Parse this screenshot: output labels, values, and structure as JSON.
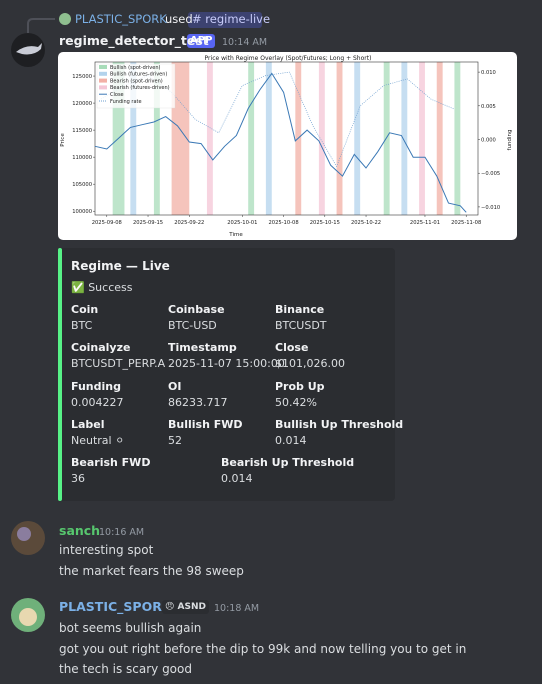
{
  "header": {
    "user": "PLASTIC_SPORK",
    "used": "used",
    "command": "# regime-live"
  },
  "bot": {
    "name": "regime_detector_test",
    "tag": "APP",
    "time": "10:14 AM"
  },
  "chart": {
    "type": "line",
    "title": "Price with Regime Overlay (Spot/Futures; Long + Short)",
    "xlabel": "Time",
    "ylabel": "Price",
    "y2label": "funding",
    "xlim": [
      "2025-09-06",
      "2025-11-10"
    ],
    "xticks": [
      "2025-09-08",
      "2025-09-15",
      "2025-09-22",
      "2025-10-01",
      "2025-10-08",
      "2025-10-15",
      "2025-10-22",
      "2025-11-01",
      "2025-11-08"
    ],
    "ylim": [
      99300,
      127600
    ],
    "yticks": [
      100000,
      105000,
      110000,
      115000,
      120000,
      125000
    ],
    "y2lim": [
      -0.0112,
      0.0115
    ],
    "y2ticks": [
      {
        "value": -0.01,
        "label": "−0.010"
      },
      {
        "value": -0.005,
        "label": "−0.005"
      },
      {
        "value": 0,
        "label": "0.000"
      },
      {
        "value": 0.005,
        "label": "0.005"
      },
      {
        "value": 0.01,
        "label": "0.010"
      }
    ],
    "regimes": [
      {
        "name": "Bullish (spot-driven)",
        "color": "#a8dcb9",
        "spans": [
          [
            "2025-09-09",
            "2025-09-11"
          ],
          [
            "2025-09-16",
            "2025-09-17"
          ],
          [
            "2025-10-02",
            "2025-10-03"
          ],
          [
            "2025-10-25",
            "2025-10-26"
          ],
          [
            "2025-11-06",
            "2025-11-07"
          ]
        ]
      },
      {
        "name": "Bullish (futures-driven)",
        "color": "#b3d3ec",
        "spans": [
          [
            "2025-09-12",
            "2025-09-13"
          ],
          [
            "2025-10-05",
            "2025-10-06"
          ],
          [
            "2025-10-20",
            "2025-10-21"
          ],
          [
            "2025-10-28",
            "2025-10-29"
          ]
        ]
      },
      {
        "name": "Bearish (spot-driven)",
        "color": "#f2b0a6",
        "spans": [
          [
            "2025-09-19",
            "2025-09-22"
          ],
          [
            "2025-10-10",
            "2025-10-11"
          ],
          [
            "2025-10-17",
            "2025-10-18"
          ],
          [
            "2025-11-03",
            "2025-11-04"
          ]
        ]
      },
      {
        "name": "Bearish (futures-driven)",
        "color": "#f4c6d6",
        "spans": [
          [
            "2025-09-25",
            "2025-09-26"
          ],
          [
            "2025-10-14",
            "2025-10-15"
          ],
          [
            "2025-10-31",
            "2025-11-01"
          ]
        ]
      }
    ],
    "series": [
      {
        "name": "Close",
        "color": "#3a78b5",
        "x": [
          "2025-09-06",
          "2025-09-08",
          "2025-09-10",
          "2025-09-12",
          "2025-09-14",
          "2025-09-16",
          "2025-09-18",
          "2025-09-20",
          "2025-09-22",
          "2025-09-24",
          "2025-09-26",
          "2025-09-28",
          "2025-09-30",
          "2025-10-02",
          "2025-10-04",
          "2025-10-06",
          "2025-10-08",
          "2025-10-10",
          "2025-10-12",
          "2025-10-14",
          "2025-10-16",
          "2025-10-18",
          "2025-10-20",
          "2025-10-22",
          "2025-10-24",
          "2025-10-26",
          "2025-10-28",
          "2025-10-30",
          "2025-11-01",
          "2025-11-03",
          "2025-11-05",
          "2025-11-07",
          "2025-11-08"
        ],
        "values": [
          112000,
          111500,
          113500,
          115500,
          116000,
          116500,
          117500,
          115800,
          112800,
          112500,
          109500,
          112000,
          114000,
          119000,
          122500,
          125500,
          122000,
          113000,
          115000,
          113000,
          108500,
          106500,
          110500,
          108000,
          111000,
          114500,
          114000,
          110000,
          110000,
          106500,
          101500,
          101000,
          99800
        ]
      },
      {
        "name": "Funding rate",
        "color": "#6e9fcf",
        "axis": "y2",
        "x": [
          "2025-09-07",
          "2025-09-11",
          "2025-09-15",
          "2025-09-19",
          "2025-09-23",
          "2025-09-27",
          "2025-10-01",
          "2025-10-05",
          "2025-10-09",
          "2025-10-13",
          "2025-10-17",
          "2025-10-21",
          "2025-10-25",
          "2025-10-29",
          "2025-11-02",
          "2025-11-06"
        ],
        "values": [
          0.006,
          0.008,
          0.0095,
          0.007,
          0.003,
          0.001,
          0.008,
          0.0095,
          0.01,
          0.002,
          -0.004,
          0.005,
          0.008,
          0.009,
          0.006,
          0.0045
        ]
      }
    ]
  },
  "embed": {
    "title": "Regime — Live",
    "status": "✅ Success",
    "fields": [
      {
        "name": "Coin",
        "value": "BTC"
      },
      {
        "name": "Coinbase",
        "value": "BTC-USD"
      },
      {
        "name": "Binance",
        "value": "BTCUSDT"
      },
      {
        "name": "Coinalyze",
        "value": "BTCUSDT_PERP.A"
      },
      {
        "name": "Timestamp",
        "value": "2025-11-07 15:00:00"
      },
      {
        "name": "Close",
        "value": "$101,026.00"
      },
      {
        "name": "Funding",
        "value": "0.004227"
      },
      {
        "name": "OI",
        "value": "86233.717"
      },
      {
        "name": "Prob Up",
        "value": "50.42%"
      },
      {
        "name": "Label",
        "value": "Neutral ⚪"
      },
      {
        "name": "Bullish FWD",
        "value": "52"
      },
      {
        "name": "Bullish Up Threshold",
        "value": "0.014"
      },
      {
        "name": "Bearish FWD",
        "value": "36"
      },
      {
        "name": "Bearish Up Threshold",
        "value": "0.014"
      }
    ]
  },
  "messages": [
    {
      "author": "sanch",
      "time": "10:16 AM",
      "lines": [
        "interesting spot",
        "the market fears the 98 sweep"
      ]
    },
    {
      "author": "PLASTIC_SPORK",
      "badge": "😠 ASND",
      "time": "10:18 AM",
      "lines": [
        "bot seems bullish again",
        "got you out right before the  dip to 99k and now telling you to get in",
        "the tech is scary good"
      ]
    }
  ]
}
